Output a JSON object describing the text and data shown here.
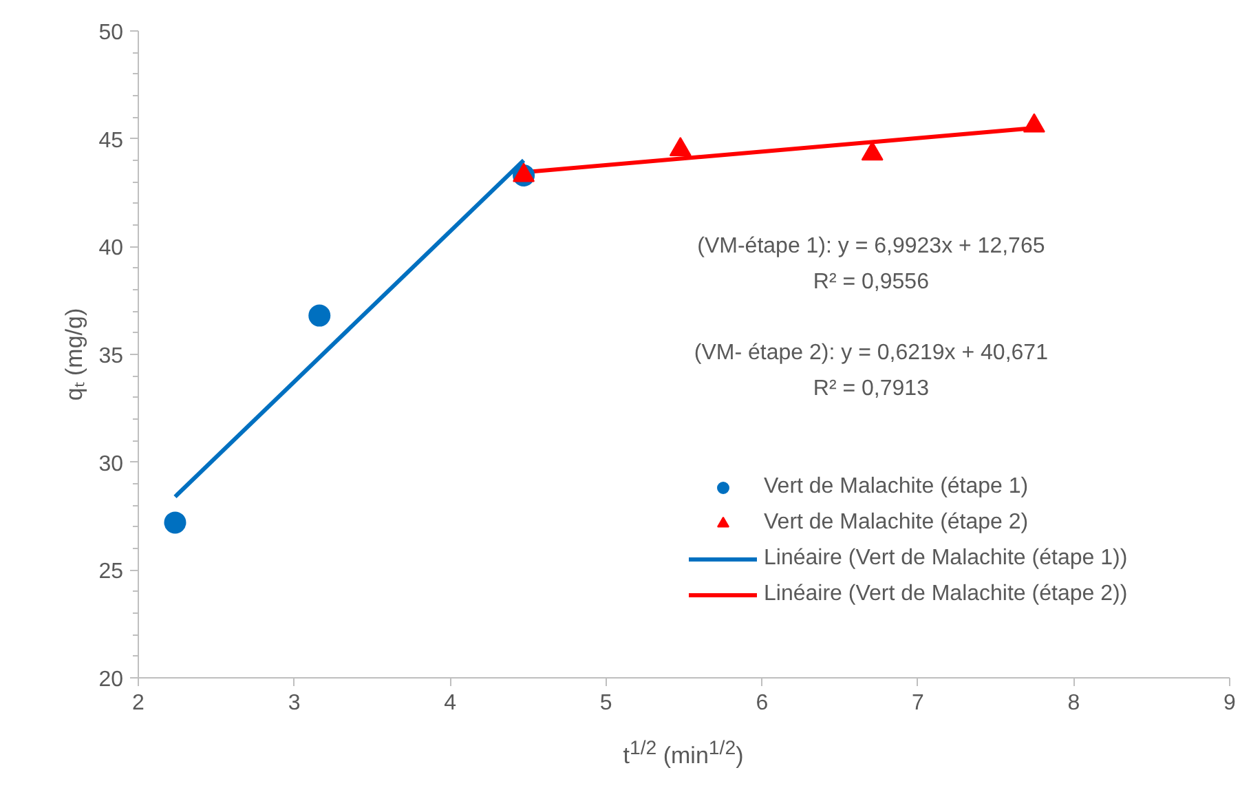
{
  "chart_data": {
    "type": "scatter",
    "xlabel": "t$^{1/2}$ (min$^{1/2}$)",
    "ylabel": "qₜ (mg/g)",
    "xlim": [
      2,
      9
    ],
    "ylim": [
      20,
      50
    ],
    "xticks": [
      2,
      3,
      4,
      5,
      6,
      7,
      8,
      9
    ],
    "yticks": [
      20,
      25,
      30,
      35,
      40,
      45,
      50
    ],
    "grid": false,
    "legend": "right",
    "series": [
      {
        "name": "Vert de Malachite (étape 1)",
        "type": "scatter",
        "marker": "circle",
        "color": "#0070c0",
        "x": [
          2.236,
          3.162,
          4.472
        ],
        "values": [
          27.2,
          36.8,
          43.3
        ]
      },
      {
        "name": "Vert de Malachite (étape 2)",
        "type": "scatter",
        "marker": "triangle",
        "color": "#ff0000",
        "x": [
          4.472,
          5.477,
          6.708,
          7.746
        ],
        "values": [
          43.3,
          44.5,
          44.3,
          45.6
        ]
      },
      {
        "name": "Linéaire (Vert de Malachite (étape 1))",
        "type": "line",
        "marker": "none",
        "color": "#0070c0",
        "x": [
          2.236,
          4.472
        ],
        "values": [
          28.4,
          44.0
        ]
      },
      {
        "name": "Linéaire (Vert de Malachite (étape 2))",
        "type": "line",
        "marker": "none",
        "color": "#ff0000",
        "x": [
          4.472,
          7.746
        ],
        "values": [
          43.45,
          45.5
        ]
      }
    ],
    "annotations": [
      "(VM-étape 1): y = 6,9923x + 12,765",
      "R² = 0,9556",
      "(VM- étape 2): y = 0,6219x + 40,671",
      "R² = 0,7913"
    ]
  }
}
